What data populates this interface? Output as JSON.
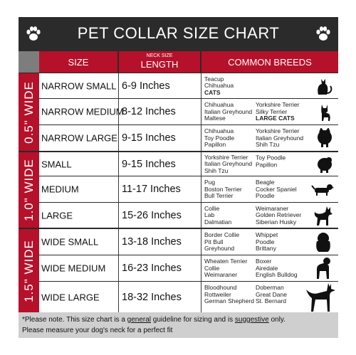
{
  "header": {
    "title": "PET COLLAR SIZE CHART"
  },
  "columns": {
    "size": "SIZE",
    "length_top": "NECK SIZE",
    "length": "LENGTH",
    "breeds": "COMMON BREEDS"
  },
  "groups": [
    {
      "label": "0.5\" WIDE"
    },
    {
      "label": "1.0\" WIDE"
    },
    {
      "label": "1.5\" WIDE"
    }
  ],
  "rows": [
    {
      "size": "NARROW SMALL",
      "length": "6-9   Inches",
      "col1": [
        "Teacup",
        "Chihuahua",
        "CATS"
      ],
      "col2": [],
      "icon": "cat-icon"
    },
    {
      "size": "NARROW MEDIUM",
      "length": "8-12 Inches",
      "col1": [
        "Chihuahua",
        "Italian Greyhound",
        "Maltese"
      ],
      "col2": [
        "Yorkshire Terrier",
        "Silky Terrier",
        "LARGE CATS"
      ],
      "icon": "chihuahua-icon"
    },
    {
      "size": "NARROW LARGE",
      "length": "9-15 Inches",
      "col1": [
        "Chihuahua",
        "Toy Poodle",
        "Papillon"
      ],
      "col2": [
        "Yorkshire Terrier",
        "Italian Greyhound",
        "Shih Tzu"
      ],
      "icon": "pomeranian-icon"
    },
    {
      "size": "SMALL",
      "length": "9-15   Inches",
      "col1": [
        "Yorkshire Terrier",
        "Italian Greyhound",
        "Shih Tzu"
      ],
      "col2": [
        "Toy Poodle",
        "Papillon"
      ],
      "icon": "small-dog-icon"
    },
    {
      "size": "MEDIUM",
      "length": "11-17 Inches",
      "col1": [
        "Pug",
        "Boston Terrier",
        "Bull Terrier"
      ],
      "col2": [
        "Beagle",
        "Cocker Spaniel",
        "Poodle"
      ],
      "icon": "dachshund-icon"
    },
    {
      "size": "LARGE",
      "length": "15-26 Inches",
      "col1": [
        "Collie",
        "Lab",
        "Dalmatian"
      ],
      "col2": [
        "Weimaraner",
        "Golden Retriever",
        "Siberian Husky"
      ],
      "icon": "husky-icon"
    },
    {
      "size": "WIDE SMALL",
      "length": "13-18 Inches",
      "col1": [
        "Border Collie",
        "Pit Bull",
        "Greyhound"
      ],
      "col2": [
        "Whippet",
        "Poodle",
        "Brittany"
      ],
      "icon": "bulldog-icon"
    },
    {
      "size": "WIDE MEDIUM",
      "length": "16-23 Inches",
      "col1": [
        "Wheaten Terrier",
        "Collie",
        "Weimaraner"
      ],
      "col2": [
        "Boxer",
        "Airedale",
        "English Bulldog"
      ],
      "icon": "boxer-icon"
    },
    {
      "size": "WIDE LARGE",
      "length": "18-32 Inches",
      "col1": [
        "Bloodhound",
        "Rottweiler",
        "German Shepherd"
      ],
      "col2": [
        "Doberman",
        "Great Dane",
        "St. Bernard"
      ],
      "icon": "doberman-icon"
    }
  ],
  "footer": {
    "line1_a": "*Please note. This size chart is a ",
    "line1_b": "general",
    "line1_c": " guideline for sizing and is ",
    "line1_d": "suggestive",
    "line1_e": " only.",
    "line2": "Please measure your dog's neck for a perfect fit"
  }
}
